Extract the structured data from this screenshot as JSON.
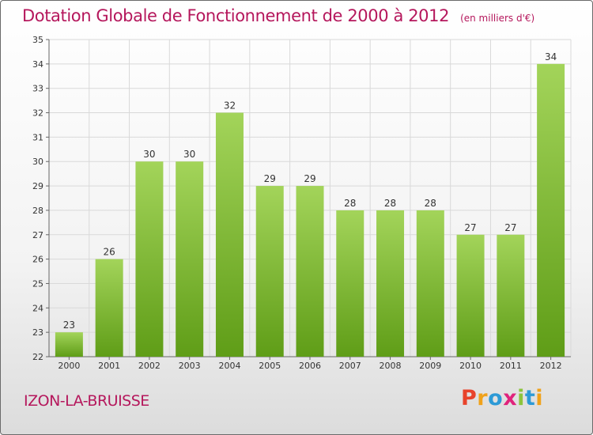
{
  "title": "Dotation Globale de Fonctionnement de 2000 à 2012",
  "subtitle": "(en milliers d'€)",
  "commune": "IZON-LA-BRUISSE",
  "logo": {
    "letters": [
      "P",
      "r",
      "o",
      "x",
      "i",
      "t",
      "i"
    ],
    "colors": [
      "#e8432b",
      "#f0a21a",
      "#2d9ad6",
      "#e0237c",
      "#8cc43c",
      "#2d9ad6",
      "#f0a21a"
    ]
  },
  "colors": {
    "bar_light": "#a3d45a",
    "bar_dark": "#5f9d17",
    "title": "#b5175c",
    "grid": "#d9d9d9"
  },
  "chart_data": {
    "type": "bar",
    "categories": [
      "2000",
      "2001",
      "2002",
      "2003",
      "2004",
      "2005",
      "2006",
      "2007",
      "2008",
      "2009",
      "2010",
      "2011",
      "2012"
    ],
    "values": [
      23,
      26,
      30,
      30,
      32,
      29,
      29,
      28,
      28,
      28,
      27,
      27,
      34
    ],
    "title": "Dotation Globale de Fonctionnement de 2000 à 2012",
    "xlabel": "",
    "ylabel": "",
    "ylim": [
      22,
      35
    ],
    "yticks": [
      22,
      23,
      24,
      25,
      26,
      27,
      28,
      29,
      30,
      31,
      32,
      33,
      34,
      35
    ],
    "grid": true,
    "data_labels": true
  }
}
